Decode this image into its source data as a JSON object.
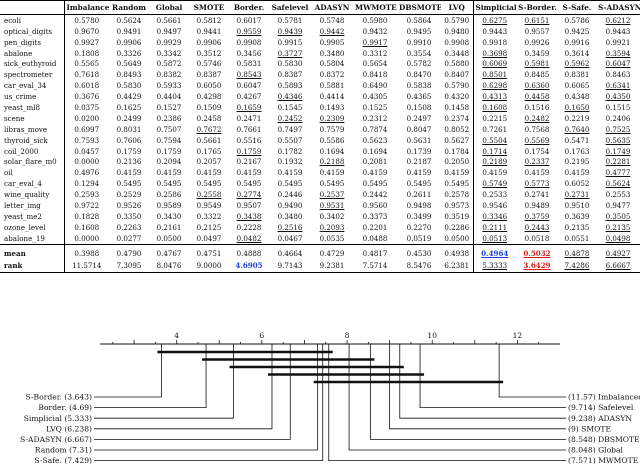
{
  "table": {
    "headers": [
      "",
      "Imbalanced",
      "Random",
      "Global",
      "SMOTE",
      "Border.",
      "Safelevel",
      "ADASYN",
      "MWMOTE",
      "DBSMOTE",
      "LVQ",
      "Simplicial",
      "S-Border.",
      "S-Safe.",
      "S-ADASYN"
    ],
    "rows": [
      {
        "name": "ecoli",
        "values": [
          "0.5780",
          "0.5624",
          "0.5661",
          "0.5812",
          "0.6017",
          "0.5781",
          "0.5748",
          "0.5980",
          "0.5864",
          "0.5790",
          "0.6275",
          "0.6151",
          "0.5786",
          "0.6212"
        ],
        "underline": [
          10,
          11,
          13
        ]
      },
      {
        "name": "optical_digits",
        "values": [
          "0.9670",
          "0.9491",
          "0.9497",
          "0.9441",
          "0.9559",
          "0.9439",
          "0.9442",
          "0.9432",
          "0.9495",
          "0.9480",
          "0.9443",
          "0.9557",
          "0.9425",
          "0.9443"
        ],
        "underline": [
          4,
          5,
          6
        ]
      },
      {
        "name": "pen_digits",
        "values": [
          "0.9927",
          "0.9906",
          "0.9929",
          "0.9906",
          "0.9908",
          "0.9915",
          "0.9905",
          "0.9917",
          "0.9910",
          "0.9908",
          "0.9918",
          "0.9926",
          "0.9916",
          "0.9921"
        ],
        "underline": [
          7
        ]
      },
      {
        "name": "abalone",
        "values": [
          "0.1808",
          "0.3326",
          "0.3342",
          "0.3512",
          "0.3456",
          "0.3727",
          "0.3480",
          "0.3312",
          "0.3554",
          "0.3448",
          "0.3698",
          "0.3459",
          "0.3614",
          "0.3594"
        ],
        "underline": [
          5,
          10,
          13
        ]
      },
      {
        "name": "sick_euthyroid",
        "values": [
          "0.5565",
          "0.5649",
          "0.5872",
          "0.5746",
          "0.5831",
          "0.5830",
          "0.5804",
          "0.5654",
          "0.5782",
          "0.5880",
          "0.6069",
          "0.5981",
          "0.5962",
          "0.6047"
        ],
        "underline": [
          10,
          11,
          12,
          13
        ]
      },
      {
        "name": "spectrometer",
        "values": [
          "0.7618",
          "0.8493",
          "0.8382",
          "0.8387",
          "0.8543",
          "0.8387",
          "0.8372",
          "0.8418",
          "0.8470",
          "0.8407",
          "0.8501",
          "0.8485",
          "0.8381",
          "0.8463"
        ],
        "underline": [
          4,
          10
        ]
      },
      {
        "name": "car_eval_34",
        "values": [
          "0.6018",
          "0.5830",
          "0.5933",
          "0.6050",
          "0.6047",
          "0.5893",
          "0.5881",
          "0.6490",
          "0.5838",
          "0.5790",
          "0.6298",
          "0.6360",
          "0.6065",
          "0.6341"
        ],
        "underline": [
          10,
          11,
          13
        ]
      },
      {
        "name": "us_crime",
        "values": [
          "0.3676",
          "0.4429",
          "0.4404",
          "0.4298",
          "0.4267",
          "0.4346",
          "0.4414",
          "0.4305",
          "0.4365",
          "0.4320",
          "0.4313",
          "0.4458",
          "0.4348",
          "0.4350"
        ],
        "underline": [
          5,
          10,
          11,
          13
        ]
      },
      {
        "name": "yeast_ml8",
        "values": [
          "0.0375",
          "0.1625",
          "0.1527",
          "0.1509",
          "0.1659",
          "0.1545",
          "0.1493",
          "0.1525",
          "0.1508",
          "0.1458",
          "0.1608",
          "0.1516",
          "0.1650",
          "0.1515"
        ],
        "underline": [
          4,
          10,
          12
        ]
      },
      {
        "name": "scene",
        "values": [
          "0.0200",
          "0.2499",
          "0.2386",
          "0.2458",
          "0.2471",
          "0.2452",
          "0.2309",
          "0.2312",
          "0.2497",
          "0.2374",
          "0.2215",
          "0.2482",
          "0.2219",
          "0.2406"
        ],
        "underline": [
          5,
          6,
          11
        ]
      },
      {
        "name": "libras_move",
        "values": [
          "0.6997",
          "0.8031",
          "0.7507",
          "0.7672",
          "0.7661",
          "0.7497",
          "0.7579",
          "0.7874",
          "0.8047",
          "0.8052",
          "0.7261",
          "0.7568",
          "0.7640",
          "0.7525"
        ],
        "underline": [
          3,
          12,
          13
        ]
      },
      {
        "name": "thyroid_sick",
        "values": [
          "0.7593",
          "0.7606",
          "0.7594",
          "0.5661",
          "0.5516",
          "0.5507",
          "0.5586",
          "0.5623",
          "0.5631",
          "0.5627",
          "0.5504",
          "0.5569",
          "0.5471",
          "0.5635"
        ],
        "underline": [
          10,
          11,
          13
        ]
      },
      {
        "name": "coil_2000",
        "values": [
          "0.0457",
          "0.1759",
          "0.1759",
          "0.1765",
          "0.1759",
          "0.1782",
          "0.1694",
          "0.1694",
          "0.1739",
          "0.1784",
          "0.1714",
          "0.1754",
          "0.1763",
          "0.1749"
        ],
        "underline": [
          4,
          10,
          13
        ]
      },
      {
        "name": "solar_flare_m0",
        "values": [
          "0.0000",
          "0.2136",
          "0.2094",
          "0.2057",
          "0.2167",
          "0.1932",
          "0.2188",
          "0.2081",
          "0.2187",
          "0.2050",
          "0.2189",
          "0.2337",
          "0.2195",
          "0.2281"
        ],
        "underline": [
          6,
          10,
          11,
          13
        ]
      },
      {
        "name": "oil",
        "values": [
          "0.4976",
          "0.4159",
          "0.4159",
          "0.4159",
          "0.4159",
          "0.4159",
          "0.4159",
          "0.4159",
          "0.4159",
          "0.4159",
          "0.4159",
          "0.4159",
          "0.4159",
          "0.4777"
        ],
        "underline": [
          13
        ]
      },
      {
        "name": "car_eval_4",
        "values": [
          "0.1294",
          "0.5495",
          "0.5495",
          "0.5495",
          "0.5495",
          "0.5495",
          "0.5495",
          "0.5495",
          "0.5495",
          "0.5495",
          "0.5749",
          "0.5773",
          "0.6052",
          "0.5624"
        ],
        "underline": [
          10,
          11,
          13
        ]
      },
      {
        "name": "wine_quality",
        "values": [
          "0.2593",
          "0.2529",
          "0.2586",
          "0.2558",
          "0.2774",
          "0.2446",
          "0.2537",
          "0.2442",
          "0.2611",
          "0.2578",
          "0.2533",
          "0.2741",
          "0.2731",
          "0.2553"
        ],
        "underline": [
          3,
          4,
          6,
          12
        ]
      },
      {
        "name": "letter_img",
        "values": [
          "0.9722",
          "0.9526",
          "0.9589",
          "0.9549",
          "0.9507",
          "0.9490",
          "0.9531",
          "0.9560",
          "0.9498",
          "0.9573",
          "0.9546",
          "0.9489",
          "0.9510",
          "0.9477"
        ],
        "underline": [
          6
        ]
      },
      {
        "name": "yeast_me2",
        "values": [
          "0.1828",
          "0.3350",
          "0.3430",
          "0.3322",
          "0.3438",
          "0.3480",
          "0.3402",
          "0.3373",
          "0.3499",
          "0.3519",
          "0.3346",
          "0.3759",
          "0.3639",
          "0.3505"
        ],
        "underline": [
          4,
          10,
          11,
          13
        ]
      },
      {
        "name": "ozone_level",
        "values": [
          "0.1608",
          "0.2263",
          "0.2161",
          "0.2125",
          "0.2228",
          "0.2516",
          "0.2093",
          "0.2201",
          "0.2270",
          "0.2286",
          "0.2111",
          "0.2443",
          "0.2135",
          "0.2135"
        ],
        "underline": [
          5,
          6,
          10,
          11,
          13
        ]
      },
      {
        "name": "abalone_19",
        "values": [
          "0.0000",
          "0.0277",
          "0.0500",
          "0.0497",
          "0.0482",
          "0.0467",
          "0.0535",
          "0.0488",
          "0.0519",
          "0.0500",
          "0.0513",
          "0.0518",
          "0.0551",
          "0.0498"
        ],
        "underline": [
          4,
          10,
          13
        ]
      }
    ],
    "mean": {
      "label": "mean",
      "values": [
        "0.3988",
        "0.4790",
        "0.4767",
        "0.4751",
        "0.4888",
        "0.4664",
        "0.4729",
        "0.4817",
        "0.4530",
        "0.4938",
        "0.4964",
        "0.5032",
        "0.4878",
        "0.4927"
      ],
      "blue": 10,
      "red": 11
    },
    "rank": {
      "label": "rank",
      "values": [
        "11.5714",
        "7.3095",
        "8.0476",
        "9.0000",
        "4.6905",
        "9.7143",
        "9.2381",
        "7.5714",
        "8.5476",
        "6.2381",
        "5.3333",
        "3.6429",
        "7.4286",
        "6.6667"
      ],
      "blue": 4,
      "red": 11
    }
  },
  "cd": {
    "axis_ticks": [
      "4",
      "6",
      "8",
      "10",
      "12"
    ],
    "tick_values": [
      4,
      6,
      8,
      10,
      12
    ],
    "axis_min": 2.2,
    "axis_max": 13.0,
    "left_labels": [
      {
        "text": "S-Border. (3.643)",
        "rank": 3.643
      },
      {
        "text": "Border. (4.69)",
        "rank": 4.69
      },
      {
        "text": "Simplicial (5.333)",
        "rank": 5.333
      },
      {
        "text": "LVQ (6.238)",
        "rank": 6.238
      },
      {
        "text": "S-ADASYN (6.667)",
        "rank": 6.667
      },
      {
        "text": "Random (7.31)",
        "rank": 7.31
      },
      {
        "text": "S-Safe. (7.429)",
        "rank": 7.429
      }
    ],
    "right_labels": [
      {
        "text": "(11.57) Imbalanced",
        "rank": 11.571
      },
      {
        "text": "(9.714) Safelevel",
        "rank": 9.714
      },
      {
        "text": "(9.238) ADASYN",
        "rank": 9.238
      },
      {
        "text": "(9) SMOTE",
        "rank": 9.0
      },
      {
        "text": "(8.548) DBSMOTE",
        "rank": 8.548
      },
      {
        "text": "(8.048) Global",
        "rank": 8.048
      },
      {
        "text": "(7.571) MWMOTE",
        "rank": 7.571
      }
    ],
    "cliques": [
      {
        "from": 3.643,
        "to": 7.571
      },
      {
        "from": 4.69,
        "to": 8.548
      },
      {
        "from": 5.333,
        "to": 9.238
      },
      {
        "from": 6.238,
        "to": 9.714
      },
      {
        "from": 7.31,
        "to": 11.571
      }
    ]
  }
}
